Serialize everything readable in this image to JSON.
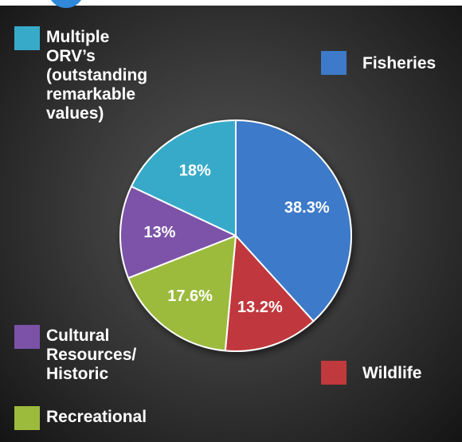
{
  "chart_data": {
    "type": "pie",
    "slices": [
      {
        "label": "Fisheries",
        "value": 38.3,
        "value_label": "38.3%",
        "color": "#3d7ac9"
      },
      {
        "label": "Wildlife",
        "value": 13.2,
        "value_label": "13.2%",
        "color": "#c0393c"
      },
      {
        "label": "Recreational",
        "value": 17.6,
        "value_label": "17.6%",
        "color": "#9cbb3c"
      },
      {
        "label": "Cultural Resources/ Historic",
        "value": 13,
        "value_label": "13%",
        "color": "#7b52a8"
      },
      {
        "label": "Multiple ORV’s (outstanding remarkable values)",
        "value": 18,
        "value_label": "18%",
        "color": "#37aac9"
      }
    ],
    "legend": {
      "fisheries": {
        "lines": [
          "Fisheries"
        ],
        "color": "#3d7ac9"
      },
      "wildlife": {
        "lines": [
          "Wildlife"
        ],
        "color": "#c0393c"
      },
      "recreational": {
        "lines": [
          "Recreational"
        ],
        "color": "#9cbb3c"
      },
      "cultural": {
        "lines": [
          "Cultural",
          "Resources/",
          "Historic"
        ],
        "color": "#7b52a8"
      },
      "multiple": {
        "lines": [
          "Multiple",
          "ORV’s",
          "(outstanding",
          "remarkable",
          "values)"
        ],
        "color": "#37aac9"
      }
    }
  }
}
